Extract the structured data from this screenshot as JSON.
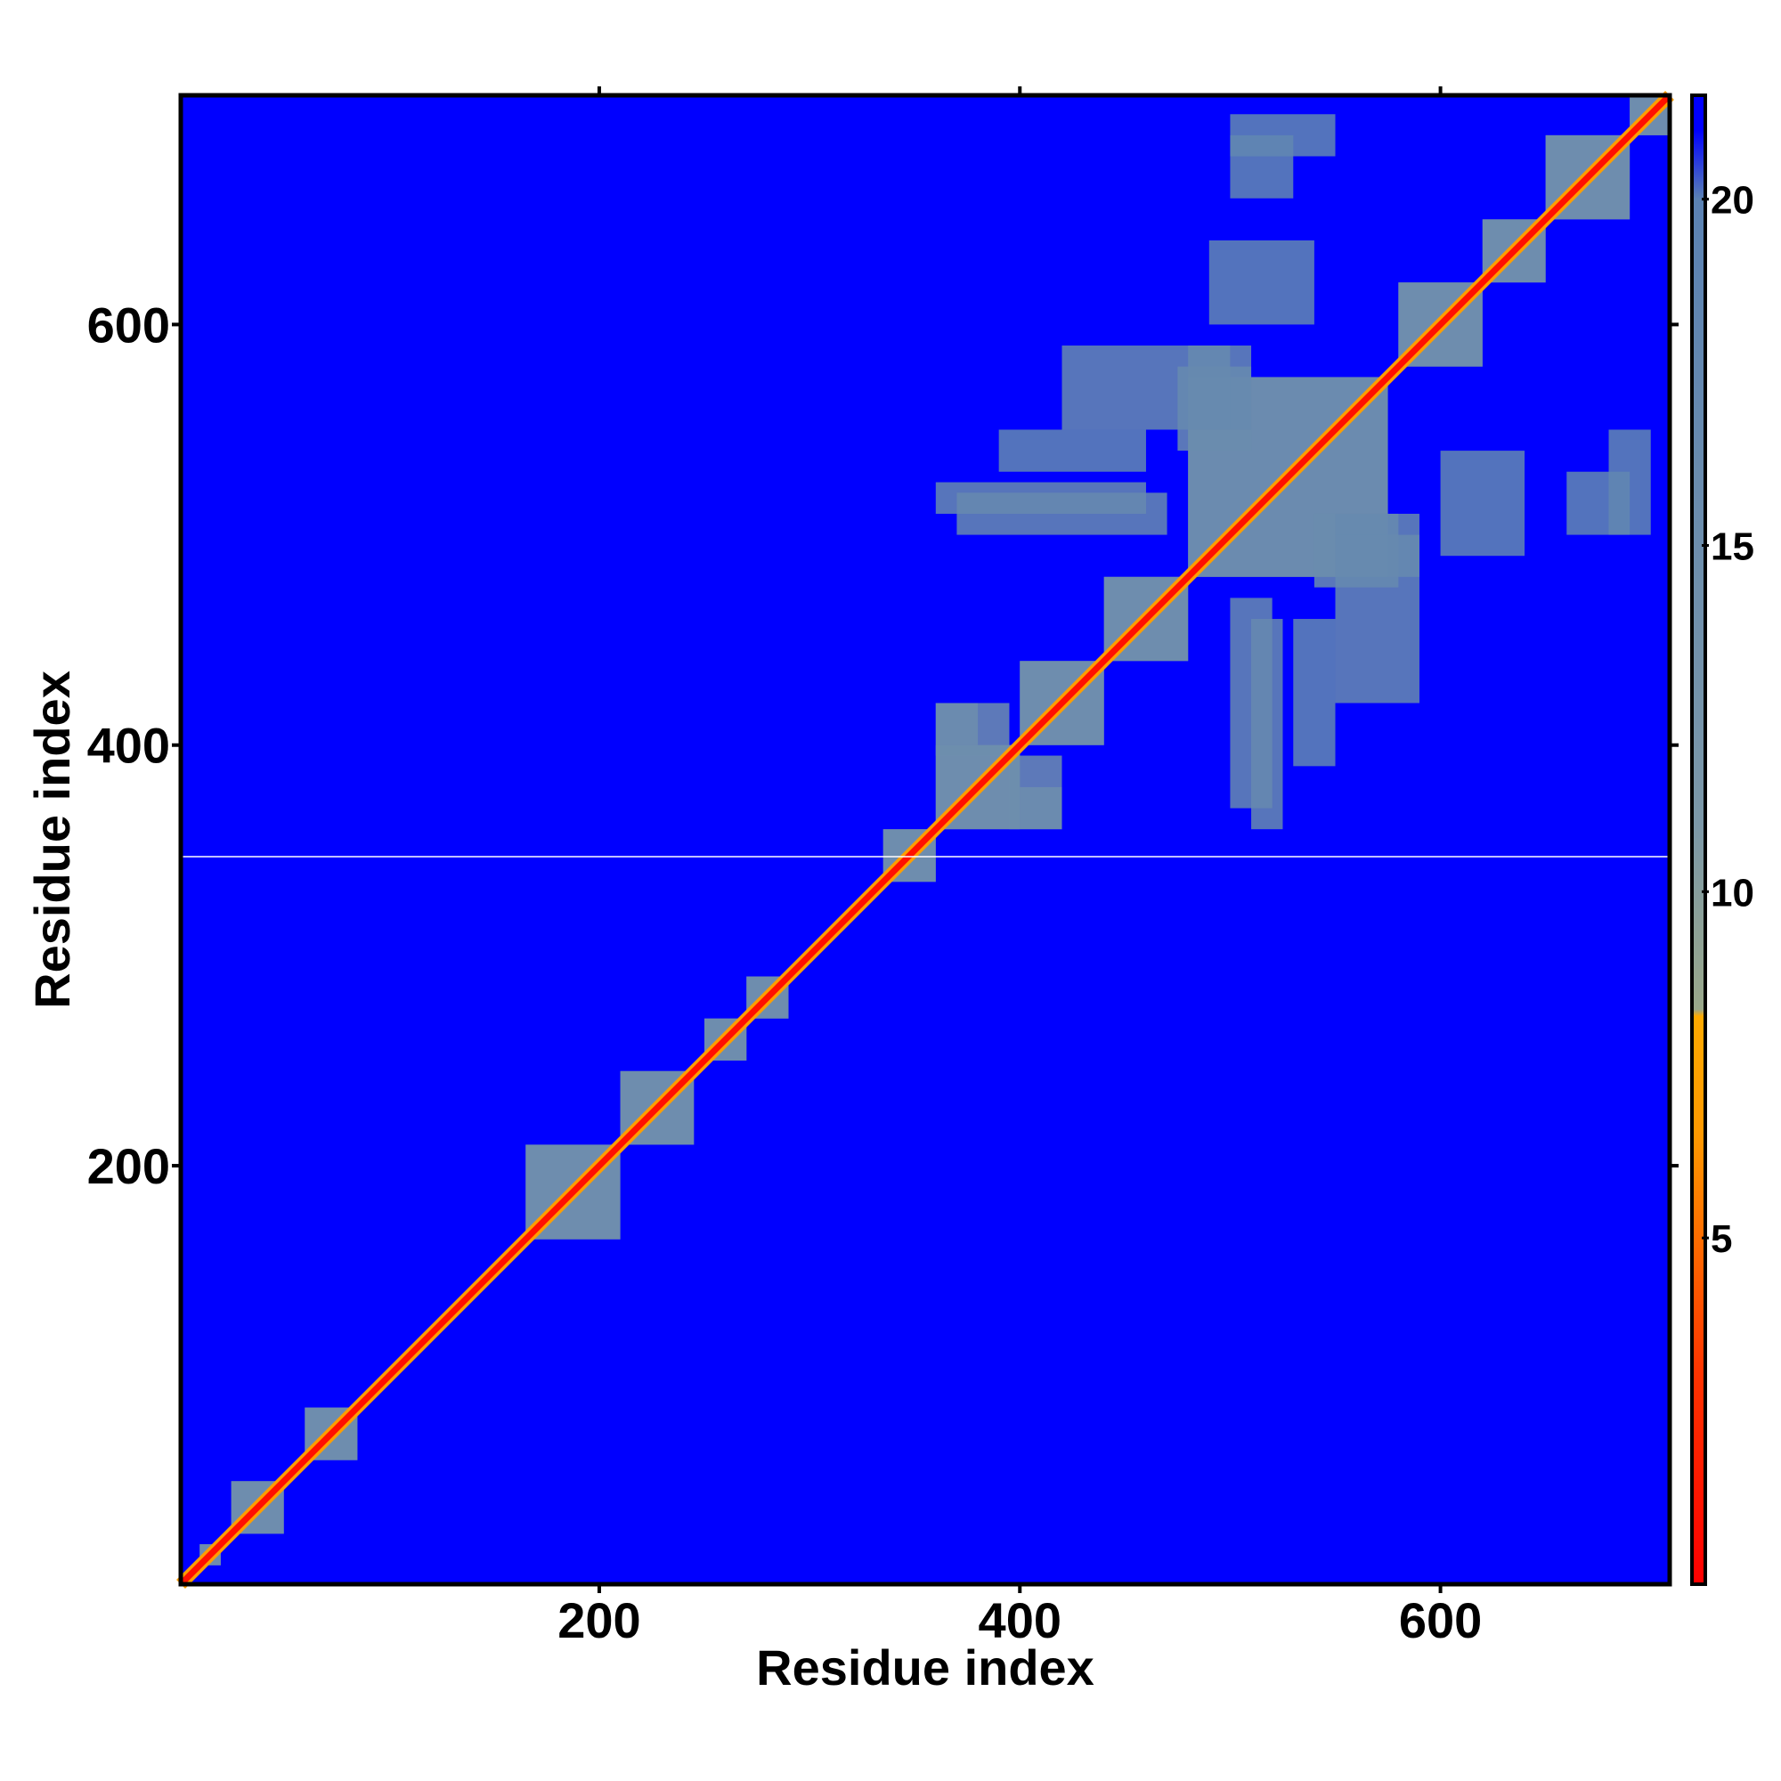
{
  "chart_data": {
    "type": "heatmap",
    "title": "",
    "xlabel": "Residue index",
    "ylabel": "Residue index",
    "xlim": [
      1,
      709
    ],
    "ylim": [
      1,
      709
    ],
    "x_ticks": [
      200,
      400,
      600
    ],
    "y_ticks": [
      200,
      400,
      600
    ],
    "colorbar": {
      "ticks": [
        5,
        10,
        15,
        20
      ],
      "range": [
        0,
        21.5
      ],
      "stops": [
        {
          "value": 0.0,
          "color": "#ff0000"
        },
        {
          "value": 3.0,
          "color": "#ff3300"
        },
        {
          "value": 6.5,
          "color": "#ff9900"
        },
        {
          "value": 8.2,
          "color": "#ffaa00"
        },
        {
          "value": 8.3,
          "color": "#9aa88a"
        },
        {
          "value": 11.0,
          "color": "#7c98a8"
        },
        {
          "value": 20.0,
          "color": "#5b82b3"
        },
        {
          "value": 21.0,
          "color": "#0000ff"
        },
        {
          "value": 21.5,
          "color": "#0000ff"
        }
      ]
    },
    "background_value": 21.5,
    "diagonal_band": {
      "width": 4,
      "value": 1
    },
    "contact_regions": [
      {
        "x": [
          10,
          20
        ],
        "y": [
          10,
          20
        ],
        "value": 14
      },
      {
        "x": [
          25,
          50
        ],
        "y": [
          25,
          50
        ],
        "value": 14
      },
      {
        "x": [
          60,
          85
        ],
        "y": [
          60,
          85
        ],
        "value": 14
      },
      {
        "x": [
          165,
          210
        ],
        "y": [
          165,
          210
        ],
        "value": 14
      },
      {
        "x": [
          210,
          245
        ],
        "y": [
          210,
          245
        ],
        "value": 14
      },
      {
        "x": [
          250,
          270
        ],
        "y": [
          250,
          270
        ],
        "value": 14
      },
      {
        "x": [
          270,
          290
        ],
        "y": [
          270,
          290
        ],
        "value": 14
      },
      {
        "x": [
          335,
          360
        ],
        "y": [
          335,
          360
        ],
        "value": 14
      },
      {
        "x": [
          360,
          400
        ],
        "y": [
          360,
          400
        ],
        "value": 14
      },
      {
        "x": [
          360,
          380
        ],
        "y": [
          400,
          420
        ],
        "value": 14
      },
      {
        "x": [
          395,
          420
        ],
        "y": [
          360,
          395
        ],
        "value": 15
      },
      {
        "x": [
          400,
          440
        ],
        "y": [
          400,
          440
        ],
        "value": 14
      },
      {
        "x": [
          440,
          480
        ],
        "y": [
          440,
          480
        ],
        "value": 14
      },
      {
        "x": [
          480,
          575
        ],
        "y": [
          480,
          575
        ],
        "value": 15
      },
      {
        "x": [
          475,
          510
        ],
        "y": [
          540,
          580
        ],
        "value": 16
      },
      {
        "x": [
          540,
          590
        ],
        "y": [
          480,
          500
        ],
        "value": 16
      },
      {
        "x": [
          360,
          460
        ],
        "y": [
          510,
          525
        ],
        "value": 17
      },
      {
        "x": [
          550,
          590
        ],
        "y": [
          420,
          510
        ],
        "value": 17
      },
      {
        "x": [
          500,
          520
        ],
        "y": [
          370,
          470
        ],
        "value": 17
      },
      {
        "x": [
          530,
          550
        ],
        "y": [
          390,
          460
        ],
        "value": 18
      },
      {
        "x": [
          580,
          620
        ],
        "y": [
          580,
          620
        ],
        "value": 14
      },
      {
        "x": [
          620,
          650
        ],
        "y": [
          620,
          650
        ],
        "value": 14
      },
      {
        "x": [
          650,
          690
        ],
        "y": [
          650,
          690
        ],
        "value": 14
      },
      {
        "x": [
          690,
          709
        ],
        "y": [
          690,
          709
        ],
        "value": 14
      },
      {
        "x": [
          500,
          550
        ],
        "y": [
          680,
          700
        ],
        "value": 18
      },
      {
        "x": [
          660,
          690
        ],
        "y": [
          500,
          530
        ],
        "value": 18
      },
      {
        "x": [
          490,
          540
        ],
        "y": [
          600,
          640
        ],
        "value": 18
      }
    ]
  }
}
